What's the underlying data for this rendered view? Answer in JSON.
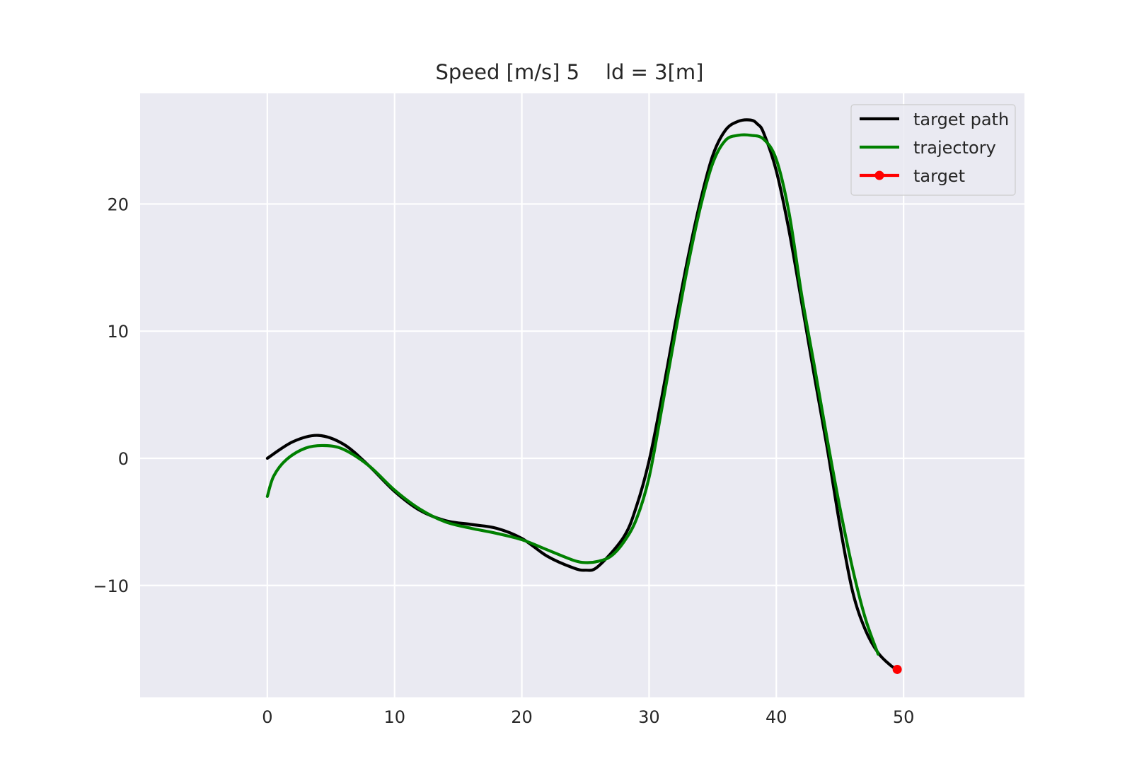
{
  "chart_data": {
    "type": "line",
    "title": "Speed [m/s] 5    ld = 3[m]",
    "xlabel": "",
    "ylabel": "",
    "xlim": [
      -10,
      59.5
    ],
    "ylim": [
      -18.8,
      28.7
    ],
    "grid": true,
    "legend_position": "top-right",
    "x_ticks": [
      0,
      10,
      20,
      30,
      40,
      50
    ],
    "y_ticks": [
      -10,
      0,
      10,
      20
    ],
    "x_tick_labels": [
      "0",
      "10",
      "20",
      "30",
      "40",
      "50"
    ],
    "y_tick_labels": [
      "−10",
      "0",
      "10",
      "20"
    ],
    "colors": {
      "background": "#eaeaf2",
      "grid": "#ffffff",
      "target_path": "#000000",
      "trajectory": "#008000",
      "target": "#ff0000"
    },
    "series": [
      {
        "name": "target path",
        "x": [
          0,
          2,
          4,
          6,
          8,
          10,
          12,
          14,
          16,
          18,
          20,
          22,
          24,
          25,
          26,
          28,
          29,
          30,
          31,
          32,
          33,
          34,
          35,
          36,
          37,
          38,
          38.5,
          39,
          40,
          41,
          42,
          43,
          44,
          45,
          46,
          47,
          48,
          49,
          49.5
        ],
        "y": [
          0,
          1.3,
          1.8,
          1.1,
          -0.6,
          -2.6,
          -4.1,
          -4.9,
          -5.2,
          -5.5,
          -6.3,
          -7.7,
          -8.6,
          -8.8,
          -8.5,
          -6.2,
          -3.8,
          -0.2,
          4.8,
          10.3,
          15.5,
          20.1,
          23.8,
          25.8,
          26.5,
          26.6,
          26.3,
          25.6,
          22.6,
          17.9,
          12.2,
          6.4,
          0.8,
          -5.3,
          -10.5,
          -13.5,
          -15.3,
          -16.3,
          -16.6
        ]
      },
      {
        "name": "trajectory",
        "x": [
          0,
          0.5,
          1.5,
          3,
          4.5,
          6,
          8,
          10,
          12,
          14,
          16,
          18,
          20,
          22,
          24,
          25,
          26,
          27,
          28,
          29,
          30,
          31,
          32,
          33,
          34,
          35,
          36,
          37,
          38,
          39,
          40,
          41,
          42,
          43,
          44,
          45,
          46,
          47,
          48
        ],
        "y": [
          -3,
          -1.4,
          -0.1,
          0.8,
          1.0,
          0.7,
          -0.6,
          -2.5,
          -4.0,
          -5.0,
          -5.5,
          -5.9,
          -6.4,
          -7.2,
          -8.0,
          -8.2,
          -8.1,
          -7.7,
          -6.6,
          -4.8,
          -1.5,
          3.9,
          9.5,
          14.9,
          19.6,
          23.2,
          25.0,
          25.4,
          25.4,
          25.1,
          23.5,
          19.3,
          12.8,
          7.2,
          1.5,
          -3.9,
          -8.7,
          -12.6,
          -15.4
        ]
      },
      {
        "name": "target",
        "x": [
          49.5
        ],
        "y": [
          -16.6
        ]
      }
    ]
  }
}
